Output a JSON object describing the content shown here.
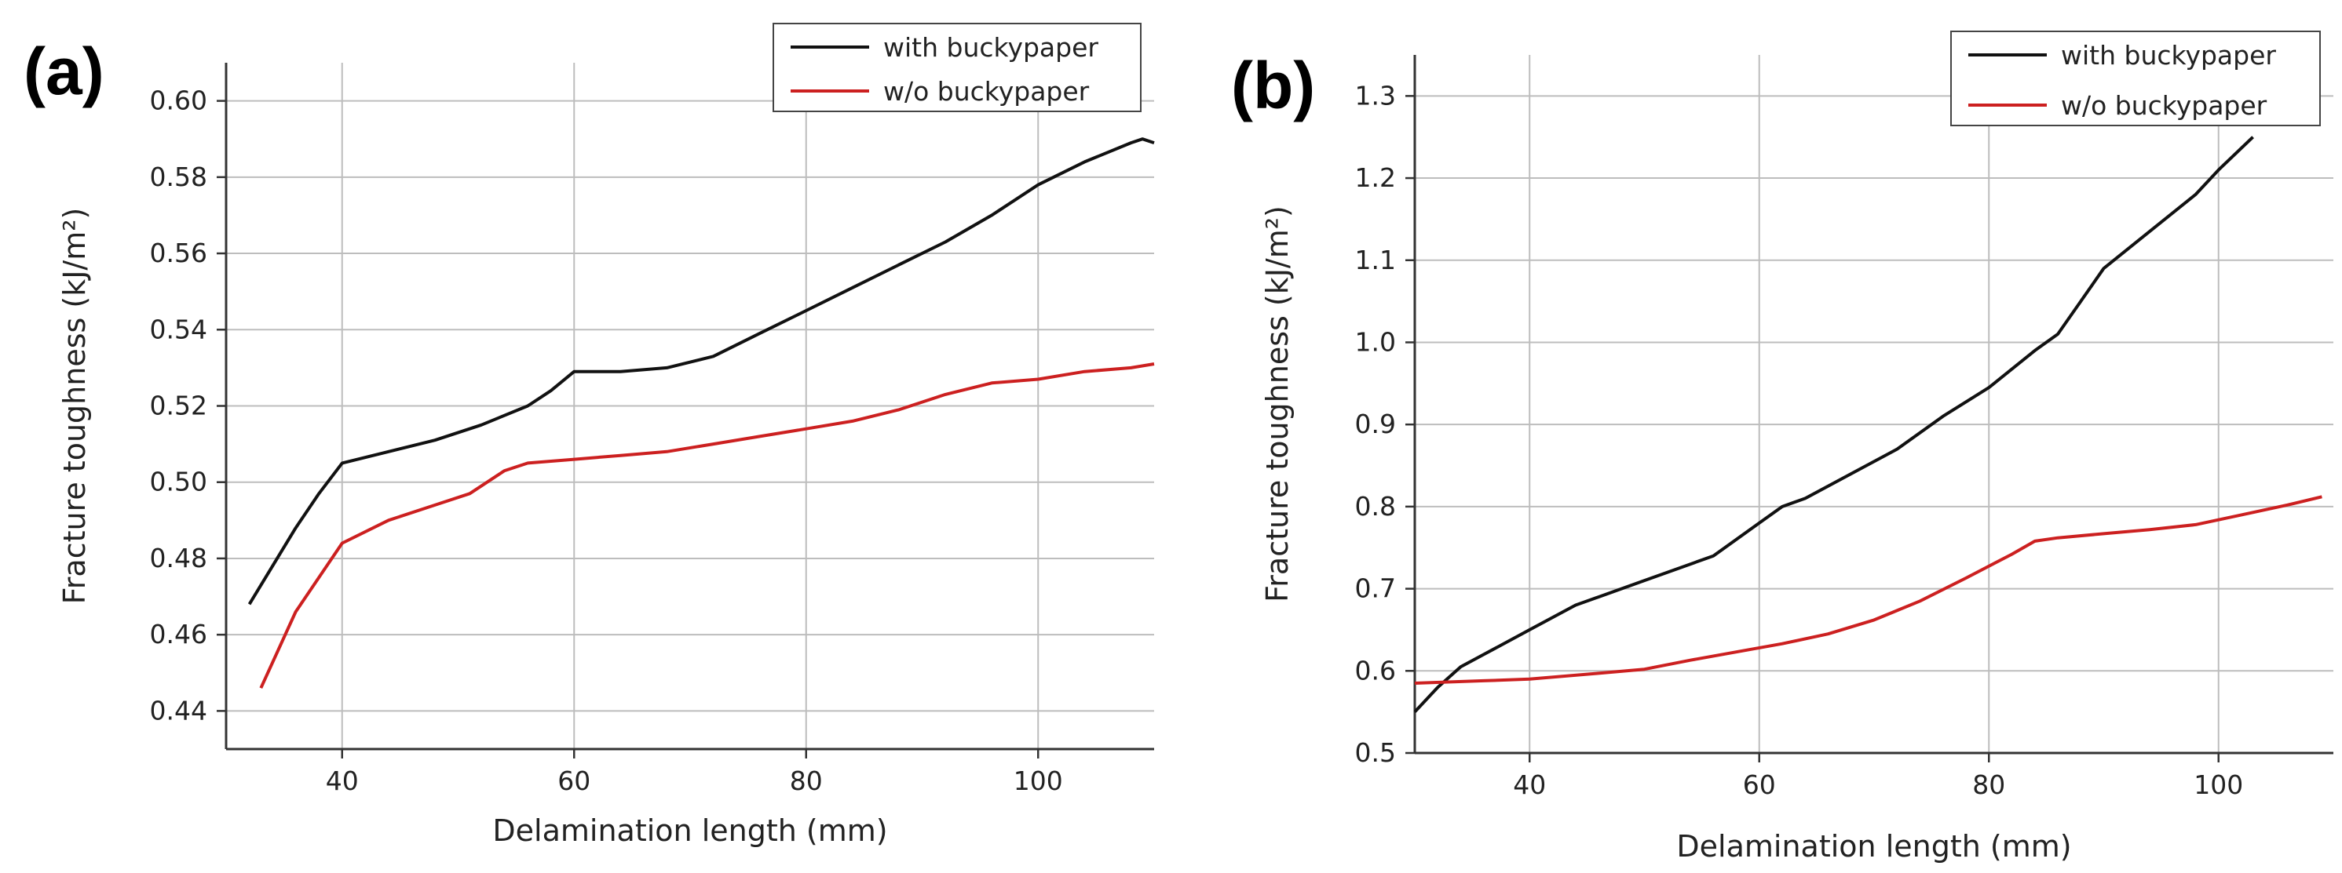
{
  "chart_data": [
    {
      "type": "line",
      "panel_label": "(a)",
      "xlabel": "Delamination length (mm)",
      "ylabel": "Fracture toughness (kJ/m²)",
      "xlim": [
        30,
        110
      ],
      "ylim": [
        0.43,
        0.61
      ],
      "xticks": [
        "40",
        "60",
        "80",
        "100"
      ],
      "xtick_values": [
        40,
        60,
        80,
        100
      ],
      "yticks": [
        "0.44",
        "0.46",
        "0.48",
        "0.50",
        "0.52",
        "0.54",
        "0.56",
        "0.58",
        "0.60"
      ],
      "ytick_values": [
        0.44,
        0.46,
        0.48,
        0.5,
        0.52,
        0.54,
        0.56,
        0.58,
        0.6
      ],
      "grid": true,
      "legend_position": "top-right",
      "series": [
        {
          "name": "with buckypaper",
          "color": "#111111",
          "x": [
            32,
            34,
            36,
            38,
            40,
            44,
            48,
            52,
            56,
            58,
            60,
            62,
            64,
            68,
            72,
            76,
            80,
            84,
            88,
            92,
            96,
            100,
            104,
            108,
            109,
            110
          ],
          "y": [
            0.468,
            0.478,
            0.488,
            0.497,
            0.505,
            0.508,
            0.511,
            0.515,
            0.52,
            0.524,
            0.529,
            0.529,
            0.529,
            0.53,
            0.533,
            0.539,
            0.545,
            0.551,
            0.557,
            0.563,
            0.57,
            0.578,
            0.584,
            0.589,
            0.59,
            0.589
          ]
        },
        {
          "name": "w/o buckypaper",
          "color": "#cc2020",
          "x": [
            33,
            36,
            40,
            44,
            48,
            51,
            54,
            56,
            60,
            64,
            68,
            72,
            76,
            80,
            84,
            88,
            92,
            96,
            100,
            104,
            108,
            110
          ],
          "y": [
            0.446,
            0.466,
            0.484,
            0.49,
            0.494,
            0.497,
            0.503,
            0.505,
            0.506,
            0.507,
            0.508,
            0.51,
            0.512,
            0.514,
            0.516,
            0.519,
            0.523,
            0.526,
            0.527,
            0.529,
            0.53,
            0.531
          ]
        }
      ]
    },
    {
      "type": "line",
      "panel_label": "(b)",
      "xlabel": "Delamination length (mm)",
      "ylabel": "Fracture toughness (kJ/m²)",
      "xlim": [
        30,
        110
      ],
      "ylim": [
        0.5,
        1.35
      ],
      "xticks": [
        "40",
        "60",
        "80",
        "100"
      ],
      "xtick_values": [
        40,
        60,
        80,
        100
      ],
      "yticks": [
        "0.5",
        "0.6",
        "0.7",
        "0.8",
        "0.9",
        "1.0",
        "1.1",
        "1.2",
        "1.3"
      ],
      "ytick_values": [
        0.5,
        0.6,
        0.7,
        0.8,
        0.9,
        1.0,
        1.1,
        1.2,
        1.3
      ],
      "grid": true,
      "legend_position": "top-right",
      "series": [
        {
          "name": "with buckypaper",
          "color": "#111111",
          "x": [
            30,
            32,
            34,
            36,
            40,
            44,
            46,
            50,
            54,
            56,
            60,
            62,
            64,
            68,
            72,
            76,
            80,
            84,
            86,
            88,
            90,
            94,
            98,
            100,
            103
          ],
          "y": [
            0.55,
            0.58,
            0.605,
            0.62,
            0.65,
            0.68,
            0.69,
            0.71,
            0.73,
            0.74,
            0.78,
            0.8,
            0.81,
            0.84,
            0.87,
            0.91,
            0.945,
            0.99,
            1.01,
            1.05,
            1.09,
            1.135,
            1.18,
            1.21,
            1.25
          ]
        },
        {
          "name": "w/o buckypaper",
          "color": "#cc2020",
          "x": [
            30,
            36,
            40,
            46,
            50,
            54,
            58,
            62,
            66,
            70,
            74,
            78,
            82,
            84,
            86,
            90,
            94,
            98,
            102,
            106,
            109
          ],
          "y": [
            0.585,
            0.588,
            0.59,
            0.597,
            0.602,
            0.613,
            0.623,
            0.633,
            0.645,
            0.662,
            0.685,
            0.713,
            0.742,
            0.758,
            0.762,
            0.767,
            0.772,
            0.778,
            0.79,
            0.802,
            0.812
          ]
        }
      ]
    }
  ]
}
